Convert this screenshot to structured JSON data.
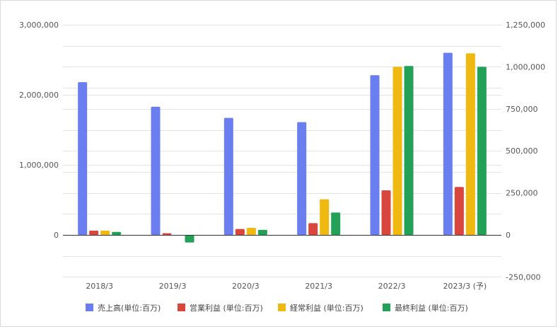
{
  "chart_data": {
    "type": "bar",
    "categories": [
      "2018/3",
      "2019/3",
      "2020/3",
      "2021/3",
      "2022/3",
      "2023/3 (予)"
    ],
    "series": [
      {
        "name": "売上高(単位:百万)",
        "axis": "left",
        "color": "#6a7ef0",
        "values": [
          2180000,
          1830000,
          1670000,
          1610000,
          2280000,
          2600000
        ]
      },
      {
        "name": "営業利益 (単位:百万)",
        "axis": "right",
        "color": "#d9463e",
        "values": [
          25000,
          10000,
          35000,
          70000,
          265000,
          285000
        ]
      },
      {
        "name": "経常利益 (単位:百万)",
        "axis": "right",
        "color": "#f0b911",
        "values": [
          25000,
          0,
          42000,
          212000,
          1000000,
          1080000
        ]
      },
      {
        "name": "最終利益 (単位:百万)",
        "axis": "right",
        "color": "#23a157",
        "values": [
          18000,
          -45000,
          30000,
          133000,
          1005000,
          1000000
        ]
      }
    ],
    "left_axis": {
      "ylim": [
        -500000,
        3000000
      ],
      "ticks": [
        0,
        1000000,
        2000000,
        3000000
      ],
      "tick_labels": [
        "0",
        "1,000,000",
        "2,000,000",
        "3,000,000"
      ]
    },
    "right_axis": {
      "ylim": [
        -250000,
        1250000
      ],
      "ticks": [
        -250000,
        0,
        250000,
        500000,
        750000,
        1000000,
        1250000
      ],
      "tick_labels": [
        "-250,000",
        "0",
        "250,000",
        "500,000",
        "750,000",
        "1,000,000",
        "1,250,000"
      ]
    },
    "grid": true,
    "legend": "bottom",
    "title": "",
    "xlabel": "",
    "ylabel": ""
  }
}
